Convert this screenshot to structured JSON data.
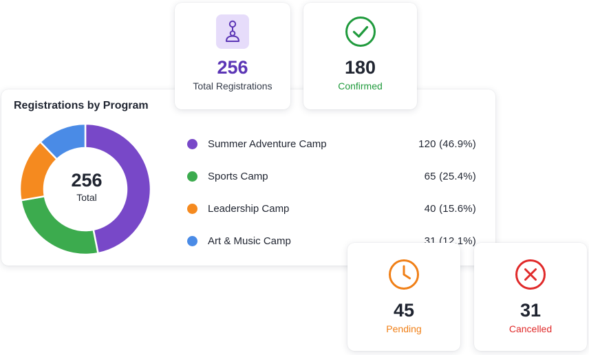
{
  "stats": {
    "total": {
      "value": "256",
      "label": "Total Registrations",
      "icon": "person-pin-icon",
      "color": "#5b35b5",
      "tile_color": "#e6dcfa"
    },
    "confirmed": {
      "value": "180",
      "label": "Confirmed",
      "icon": "check-circle-icon",
      "color": "#1f9a3c"
    },
    "pending": {
      "value": "45",
      "label": "Pending",
      "icon": "clock-icon",
      "color": "#f07f16"
    },
    "cancelled": {
      "value": "31",
      "label": "Cancelled",
      "icon": "x-circle-icon",
      "color": "#e02a2a"
    }
  },
  "program_chart": {
    "title": "Registrations by Program",
    "center_value": "256",
    "center_label": "Total",
    "items": [
      {
        "name": "Summer Adventure Camp",
        "count": "120 (46.9%)",
        "value": 120,
        "color": "#7848c8"
      },
      {
        "name": "Sports Camp",
        "count": "65 (25.4%)",
        "value": 65,
        "color": "#3cab4e"
      },
      {
        "name": "Leadership Camp",
        "count": "40 (15.6%)",
        "value": 40,
        "color": "#f58a1f"
      },
      {
        "name": "Art & Music Camp",
        "count": "31 (12.1%)",
        "value": 31,
        "color": "#4a8be6"
      }
    ]
  }
}
